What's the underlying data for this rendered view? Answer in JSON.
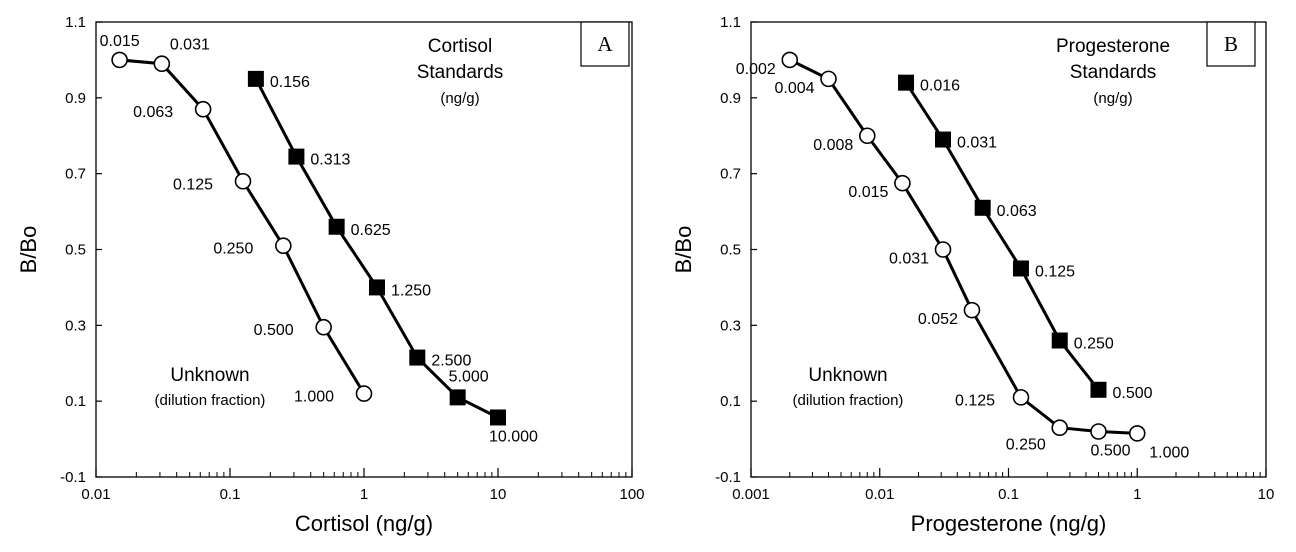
{
  "chart_data": [
    {
      "type": "line",
      "panel_label": "A",
      "xlabel": "Cortisol (ng/g)",
      "ylabel": "B/Bo",
      "x_scale": "log",
      "xlim": [
        0.01,
        100
      ],
      "ylim": [
        -0.1,
        1.1
      ],
      "x_ticks": [
        0.01,
        0.1,
        1,
        10,
        100
      ],
      "x_tick_labels": [
        "0.01",
        "0.1",
        "1",
        "10",
        "100"
      ],
      "y_ticks": [
        -0.1,
        0.1,
        0.3,
        0.5,
        0.7,
        0.9,
        1.1
      ],
      "y_tick_labels": [
        "-0.1",
        "0.1",
        "0.3",
        "0.5",
        "0.7",
        "0.9",
        "1.1"
      ],
      "series": [
        {
          "marker": "square-filled",
          "x": [
            0.156,
            0.313,
            0.625,
            1.25,
            2.5,
            5,
            10
          ],
          "y": [
            0.95,
            0.745,
            0.56,
            0.4,
            0.215,
            0.11,
            0.057
          ],
          "point_labels": [
            "0.156",
            "0.313",
            "0.625",
            "1.250",
            "2.500",
            "5.000",
            "10.000"
          ]
        },
        {
          "marker": "circle-open",
          "x": [
            0.015,
            0.031,
            0.063,
            0.125,
            0.25,
            0.5,
            1.0
          ],
          "y": [
            1.0,
            0.99,
            0.87,
            0.68,
            0.51,
            0.295,
            0.12
          ],
          "point_labels": [
            "0.015",
            "0.031",
            "0.063",
            "0.125",
            "0.250",
            "0.500",
            "1.000"
          ]
        }
      ],
      "annotations": {
        "standards_line1": "Cortisol",
        "standards_line2": "Standards",
        "standards_units": "(ng/g)",
        "unknown_title": "Unknown",
        "unknown_subtitle": "(dilution fraction)"
      }
    },
    {
      "type": "line",
      "panel_label": "B",
      "xlabel": "Progesterone (ng/g)",
      "ylabel": "B/Bo",
      "x_scale": "log",
      "xlim": [
        0.001,
        10
      ],
      "ylim": [
        -0.1,
        1.1
      ],
      "x_ticks": [
        0.001,
        0.01,
        0.1,
        1,
        10
      ],
      "x_tick_labels": [
        "0.001",
        "0.01",
        "0.1",
        "1",
        "10"
      ],
      "y_ticks": [
        -0.1,
        0.1,
        0.3,
        0.5,
        0.7,
        0.9,
        1.1
      ],
      "y_tick_labels": [
        "-0.1",
        "0.1",
        "0.3",
        "0.5",
        "0.7",
        "0.9",
        "1.1"
      ],
      "series": [
        {
          "marker": "square-filled",
          "x": [
            0.016,
            0.031,
            0.063,
            0.125,
            0.25,
            0.5
          ],
          "y": [
            0.94,
            0.79,
            0.61,
            0.45,
            0.26,
            0.13
          ],
          "point_labels": [
            "0.016",
            "0.031",
            "0.063",
            "0.125",
            "0.250",
            "0.500"
          ]
        },
        {
          "marker": "circle-open",
          "x": [
            0.002,
            0.004,
            0.008,
            0.015,
            0.031,
            0.052,
            0.125,
            0.25,
            0.5,
            1.0
          ],
          "y": [
            1.0,
            0.95,
            0.8,
            0.675,
            0.5,
            0.34,
            0.11,
            0.03,
            0.02,
            0.015
          ],
          "point_labels": [
            "0.002",
            "0.004",
            "0.008",
            "0.015",
            "0.031",
            "0.052",
            "0.125",
            "0.250",
            "0.500",
            "1.000"
          ]
        }
      ],
      "annotations": {
        "standards_line1": "Progesterone",
        "standards_line2": "Standards",
        "standards_units": "(ng/g)",
        "unknown_title": "Unknown",
        "unknown_subtitle": "(dilution fraction)"
      }
    }
  ]
}
